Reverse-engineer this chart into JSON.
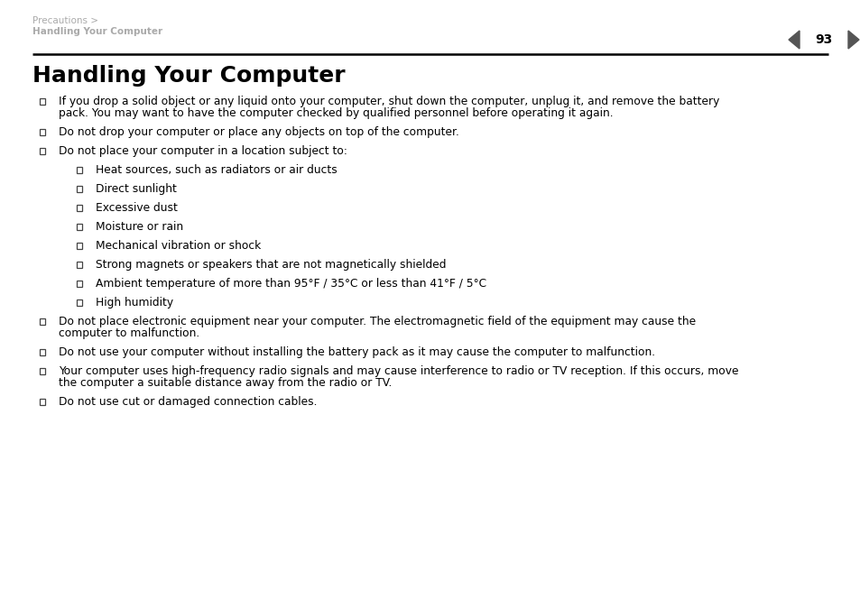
{
  "bg_color": "#ffffff",
  "breadcrumb_line1": "Precautions >",
  "breadcrumb_line2": "Handling Your Computer",
  "page_number": "93",
  "title": "Handling Your Computer",
  "items": [
    {
      "level": 1,
      "lines": [
        "If you drop a solid object or any liquid onto your computer, shut down the computer, unplug it, and remove the battery",
        "pack. You may want to have the computer checked by qualified personnel before operating it again."
      ]
    },
    {
      "level": 1,
      "lines": [
        "Do not drop your computer or place any objects on top of the computer."
      ]
    },
    {
      "level": 1,
      "lines": [
        "Do not place your computer in a location subject to:"
      ]
    },
    {
      "level": 2,
      "lines": [
        "Heat sources, such as radiators or air ducts"
      ]
    },
    {
      "level": 2,
      "lines": [
        "Direct sunlight"
      ]
    },
    {
      "level": 2,
      "lines": [
        "Excessive dust"
      ]
    },
    {
      "level": 2,
      "lines": [
        "Moisture or rain"
      ]
    },
    {
      "level": 2,
      "lines": [
        "Mechanical vibration or shock"
      ]
    },
    {
      "level": 2,
      "lines": [
        "Strong magnets or speakers that are not magnetically shielded"
      ]
    },
    {
      "level": 2,
      "lines": [
        "Ambient temperature of more than 95°F / 35°C or less than 41°F / 5°C"
      ]
    },
    {
      "level": 2,
      "lines": [
        "High humidity"
      ]
    },
    {
      "level": 1,
      "lines": [
        "Do not place electronic equipment near your computer. The electromagnetic field of the equipment may cause the",
        "computer to malfunction."
      ]
    },
    {
      "level": 1,
      "lines": [
        "Do not use your computer without installing the battery pack as it may cause the computer to malfunction."
      ]
    },
    {
      "level": 1,
      "lines": [
        "Your computer uses high-frequency radio signals and may cause interference to radio or TV reception. If this occurs, move",
        "the computer a suitable distance away from the radio or TV."
      ]
    },
    {
      "level": 1,
      "lines": [
        "Do not use cut or damaged connection cables."
      ]
    }
  ],
  "header_color": "#aaaaaa",
  "title_color": "#000000",
  "body_color": "#000000",
  "line_color": "#000000",
  "arrow_color": "#555555",
  "title_fontsize": 18,
  "header_fontsize": 7.5,
  "body_fontsize": 8.8,
  "page_num_fontsize": 10
}
